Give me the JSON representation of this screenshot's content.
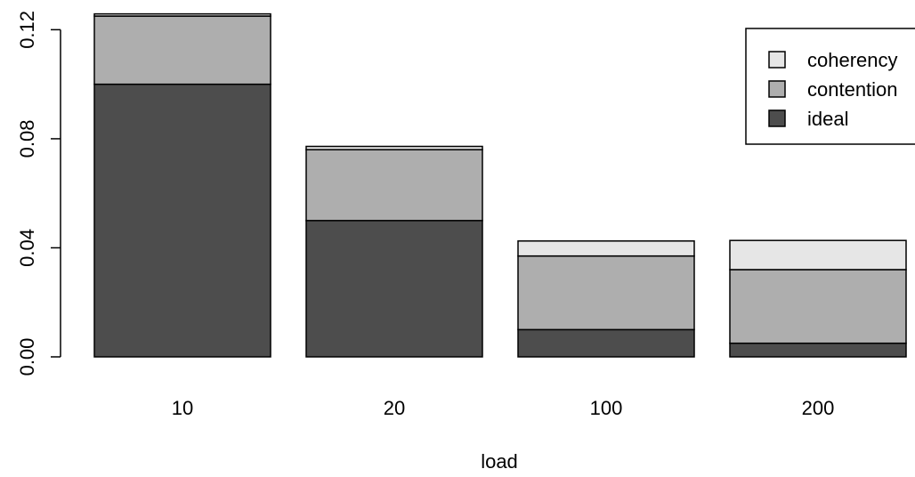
{
  "chart_data": {
    "type": "bar",
    "stacked": true,
    "title": "",
    "xlabel": "load",
    "ylabel": "",
    "categories": [
      "10",
      "20",
      "100",
      "200"
    ],
    "series": [
      {
        "name": "ideal",
        "values": [
          0.1,
          0.05,
          0.01,
          0.005
        ],
        "color": "#4d4d4d"
      },
      {
        "name": "contention",
        "values": [
          0.025,
          0.026,
          0.027,
          0.027
        ],
        "color": "#aeaeae"
      },
      {
        "name": "coherency",
        "values": [
          0.0008,
          0.0012,
          0.0055,
          0.0107
        ],
        "color": "#e6e6e6"
      }
    ],
    "ylim": [
      0,
      0.126
    ],
    "yticks": [
      "0.00",
      "0.04",
      "0.08",
      "0.12"
    ],
    "ytick_values": [
      0,
      0.04,
      0.08,
      0.12
    ],
    "grid": false,
    "legend": {
      "position": "top-right",
      "entries": [
        "coherency",
        "contention",
        "ideal"
      ]
    }
  }
}
